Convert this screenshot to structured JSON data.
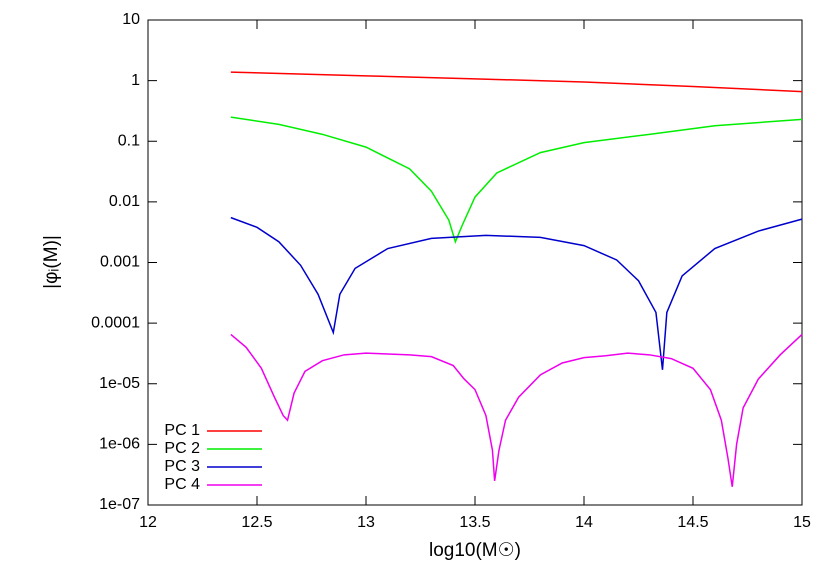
{
  "chart_data": {
    "type": "line",
    "xlabel": "log10(M☉)",
    "ylabel": "|φᵢ(M)|",
    "xlim": [
      12,
      15
    ],
    "ylim": [
      1e-07,
      10
    ],
    "log_y": true,
    "legend": "bottom left",
    "xticks": [
      12,
      12.5,
      13,
      13.5,
      14,
      14.5,
      15
    ],
    "yticks": [
      10,
      1,
      0.1,
      0.01,
      0.001,
      0.0001,
      {
        "value": 1e-05,
        "label": "1e-05"
      },
      {
        "value": 1e-06,
        "label": "1e-06"
      },
      {
        "value": 1e-07,
        "label": "1e-07"
      }
    ],
    "series": [
      {
        "name": "PC 1",
        "color": "#ff0000",
        "x": [
          12.38,
          13,
          13.5,
          14,
          14.5,
          15
        ],
        "values": [
          1.38,
          1.2,
          1.07,
          0.95,
          0.8,
          0.66
        ]
      },
      {
        "name": "PC 2",
        "color": "#00ee00",
        "x": [
          12.38,
          12.6,
          12.8,
          13.0,
          13.2,
          13.3,
          13.38,
          13.41,
          13.44,
          13.5,
          13.6,
          13.8,
          14.0,
          14.3,
          14.6,
          15
        ],
        "values": [
          0.25,
          0.19,
          0.13,
          0.08,
          0.035,
          0.015,
          0.005,
          0.0022,
          0.004,
          0.012,
          0.03,
          0.065,
          0.095,
          0.13,
          0.18,
          0.23
        ]
      },
      {
        "name": "PC 3",
        "color": "#0000cc",
        "x": [
          12.38,
          12.5,
          12.6,
          12.7,
          12.78,
          12.85,
          12.88,
          12.95,
          13.1,
          13.3,
          13.55,
          13.8,
          14.0,
          14.15,
          14.25,
          14.33,
          14.36,
          14.38,
          14.45,
          14.6,
          14.8,
          15
        ],
        "values": [
          0.0055,
          0.0038,
          0.0022,
          0.0009,
          0.0003,
          7e-05,
          0.0003,
          0.0008,
          0.0017,
          0.0025,
          0.0028,
          0.0026,
          0.0019,
          0.0011,
          0.0005,
          0.00015,
          1.7e-05,
          0.00015,
          0.0006,
          0.0017,
          0.0033,
          0.0052
        ]
      },
      {
        "name": "PC 4",
        "color": "#ee00ee",
        "x": [
          12.38,
          12.45,
          12.52,
          12.58,
          12.62,
          12.64,
          12.67,
          12.72,
          12.8,
          12.9,
          13.0,
          13.1,
          13.2,
          13.3,
          13.4,
          13.45,
          13.5,
          13.55,
          13.58,
          13.59,
          13.61,
          13.64,
          13.7,
          13.8,
          13.9,
          14.0,
          14.1,
          14.2,
          14.3,
          14.4,
          14.5,
          14.58,
          14.63,
          14.66,
          14.68,
          14.7,
          14.73,
          14.8,
          14.9,
          15
        ],
        "values": [
          6.5e-05,
          4e-05,
          1.8e-05,
          6e-06,
          3e-06,
          2.5e-06,
          7e-06,
          1.6e-05,
          2.4e-05,
          3e-05,
          3.2e-05,
          3.1e-05,
          3e-05,
          2.8e-05,
          2e-05,
          1.2e-05,
          8e-06,
          3e-06,
          8e-07,
          2.5e-07,
          8e-07,
          2.5e-06,
          6e-06,
          1.4e-05,
          2.2e-05,
          2.7e-05,
          2.9e-05,
          3.2e-05,
          3e-05,
          2.6e-05,
          1.8e-05,
          8e-06,
          2.5e-06,
          6e-07,
          2e-07,
          1e-06,
          4e-06,
          1.2e-05,
          3e-05,
          6.5e-05
        ]
      }
    ]
  }
}
